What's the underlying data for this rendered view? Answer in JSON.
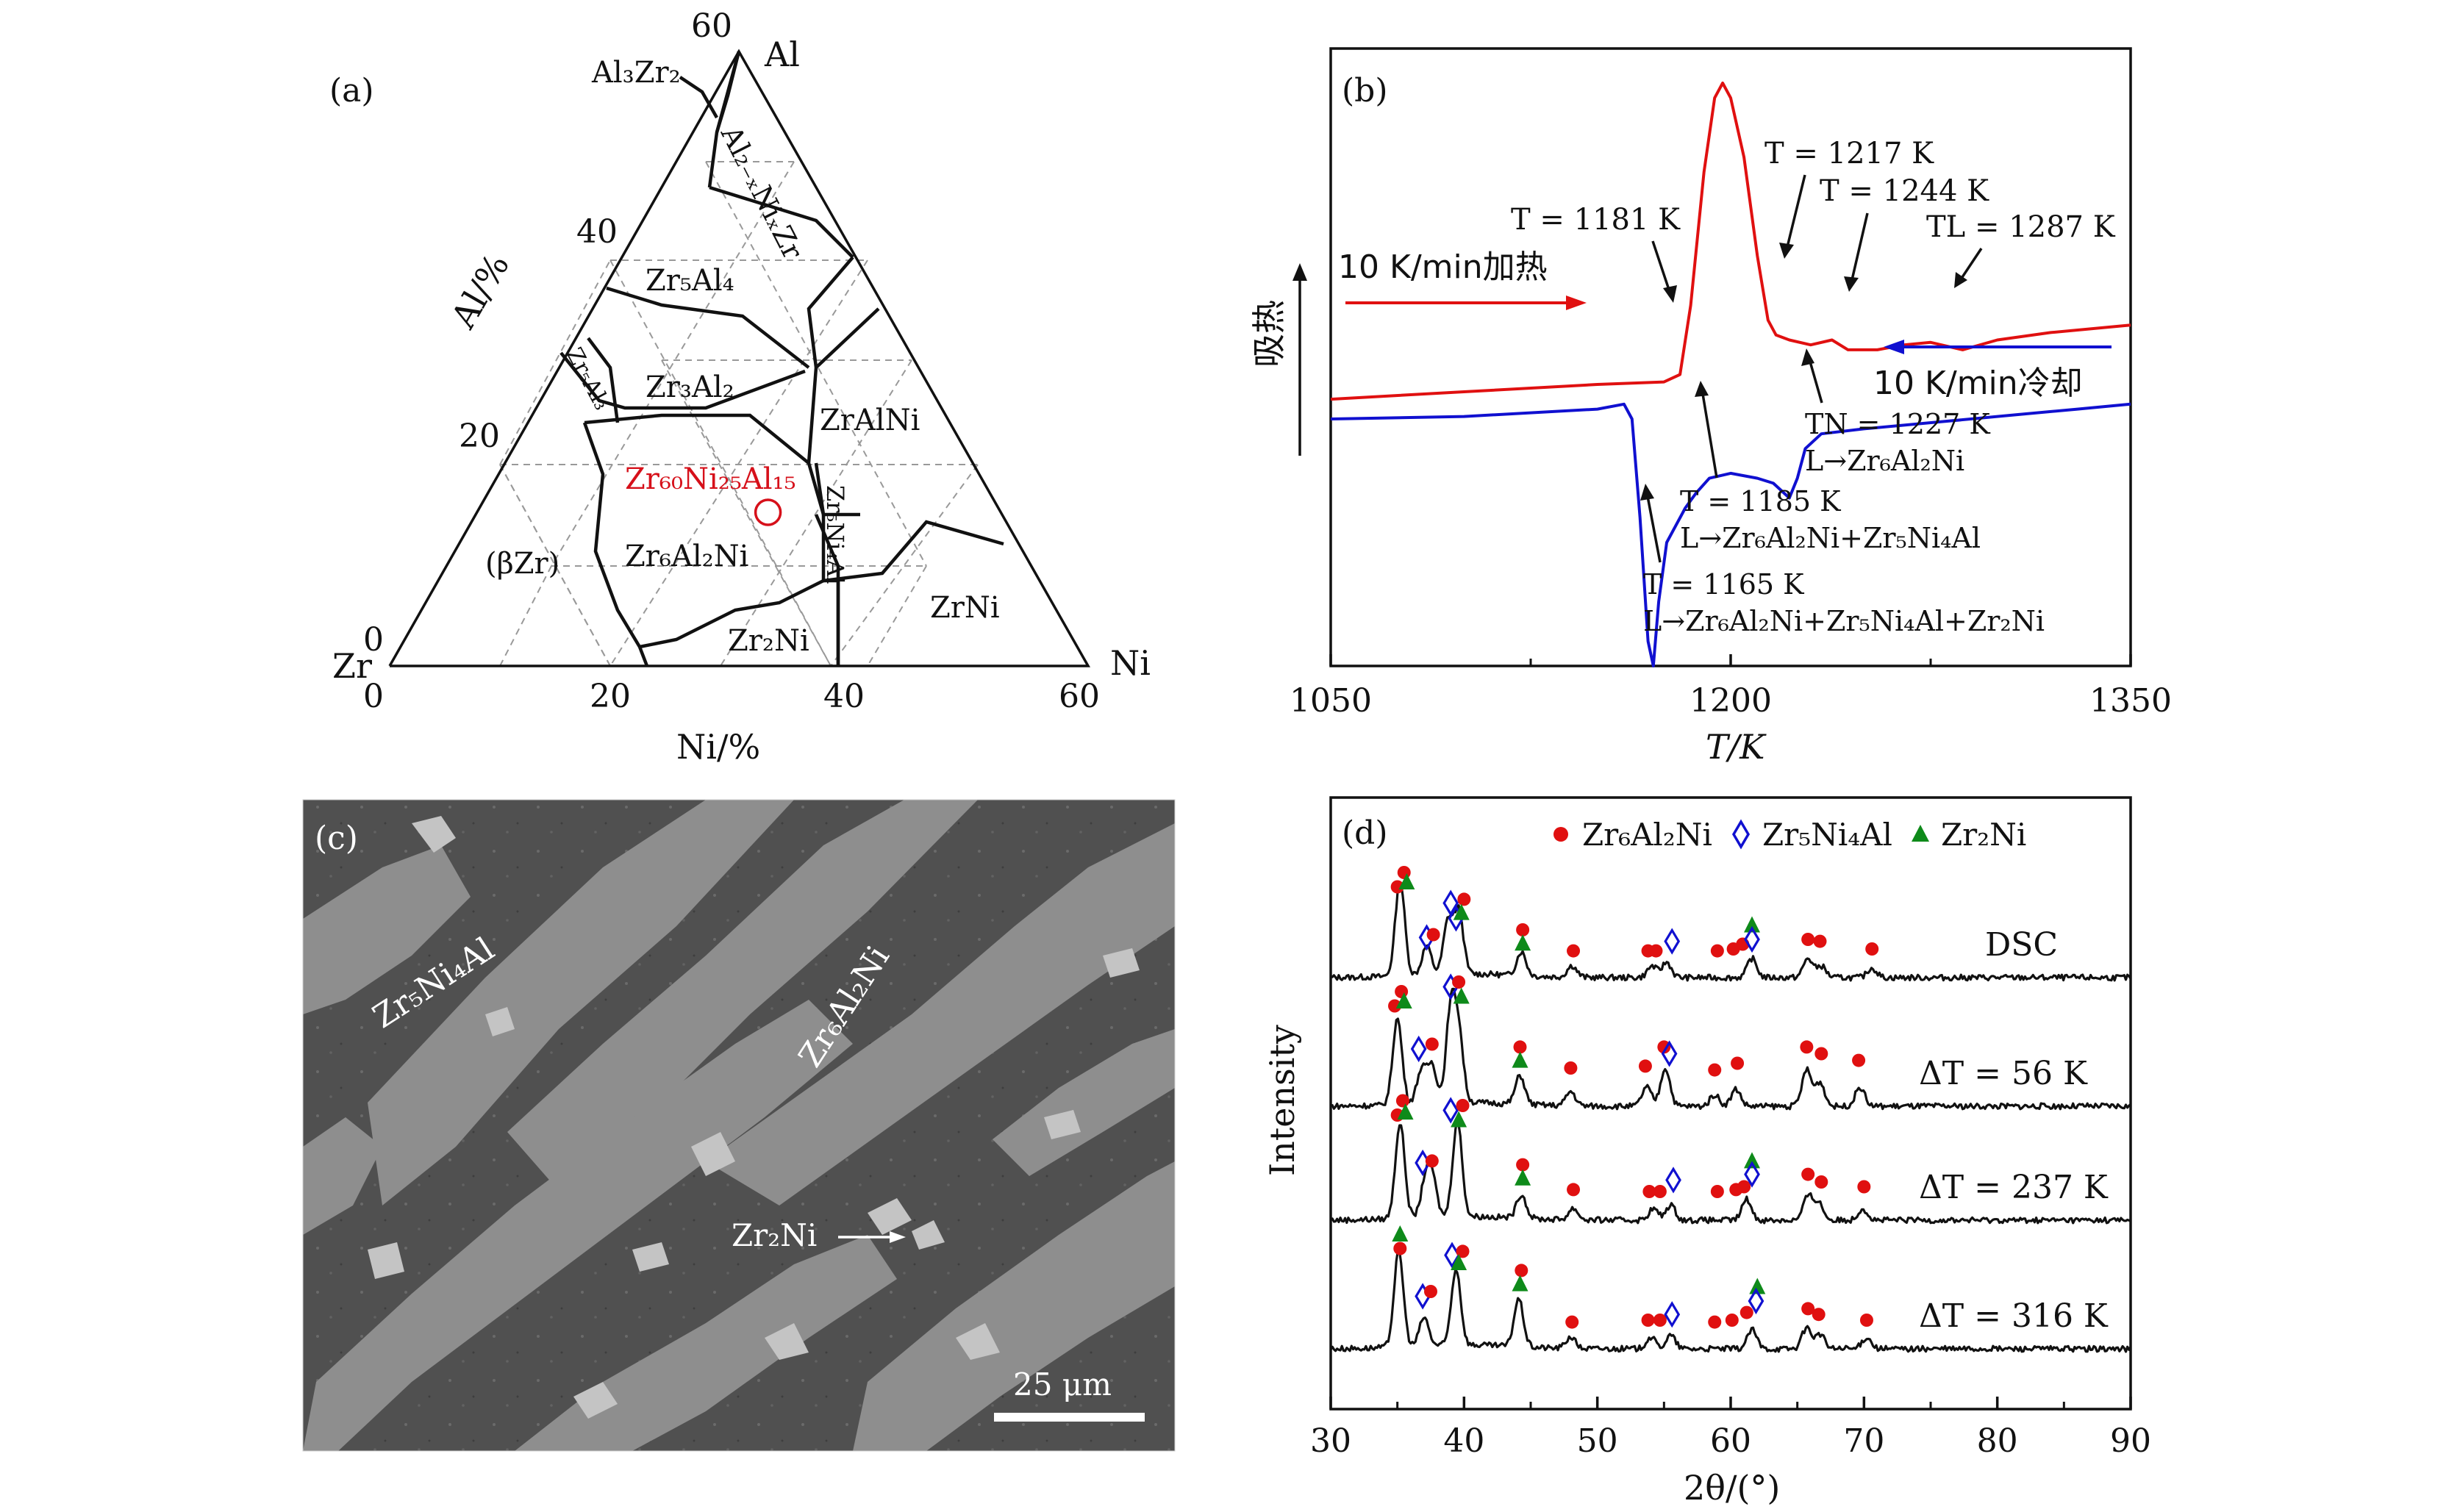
{
  "panels": {
    "a": "(a)",
    "b": "(b)",
    "c": "(c)",
    "d": "(d)"
  },
  "panel_a": {
    "vertices": {
      "zr": "Zr",
      "al": "Al",
      "ni": "Ni"
    },
    "al_ticks": [
      "60",
      "40",
      "20",
      "0"
    ],
    "ni_ticks": [
      "0",
      "20",
      "40",
      "60"
    ],
    "al_axis_label": "Al/%",
    "ni_axis_label": "Ni/%",
    "phases": {
      "al3zr2": "Al₃Zr₂",
      "al2xni": "Al₂₋ₓNiₓZr",
      "zr5al4": "Zr₅Al₄",
      "zr5al3": "Zr₅Al₃",
      "zr3al2": "Zr₃Al₂",
      "zralni": "ZrAlNi",
      "betazr": "(βZr)",
      "zr6al2ni": "Zr₆Al₂Ni",
      "zr5ni4al": "Zr₅Ni₄Al",
      "zrni": "ZrNi",
      "zr2ni": "Zr₂Ni"
    },
    "composition_label": "Zr₆₀Ni₂₅Al₁₅",
    "composition_point": {
      "ni": 25,
      "al": 15
    }
  },
  "chart_data": [
    {
      "panel": "b",
      "type": "line",
      "title": "",
      "xlabel": "T/K",
      "ylabel": "吸热",
      "xlim": [
        1050,
        1350
      ],
      "xticks": [
        "1050",
        "1200",
        "1350"
      ],
      "series": [
        {
          "name": "10 K/min加热",
          "color": "#e01010",
          "points": [
            [
              1050,
              0.71
            ],
            [
              1100,
              0.695
            ],
            [
              1150,
              0.68
            ],
            [
              1175,
              0.675
            ],
            [
              1181,
              0.66
            ],
            [
              1185,
              0.52
            ],
            [
              1190,
              0.25
            ],
            [
              1194,
              0.1
            ],
            [
              1197,
              0.07
            ],
            [
              1200,
              0.1
            ],
            [
              1205,
              0.22
            ],
            [
              1210,
              0.42
            ],
            [
              1214,
              0.55
            ],
            [
              1217,
              0.58
            ],
            [
              1222,
              0.59
            ],
            [
              1230,
              0.6
            ],
            [
              1238,
              0.59
            ],
            [
              1244,
              0.61
            ],
            [
              1255,
              0.61
            ],
            [
              1265,
              0.6
            ],
            [
              1275,
              0.595
            ],
            [
              1287,
              0.61
            ],
            [
              1300,
              0.59
            ],
            [
              1320,
              0.575
            ],
            [
              1350,
              0.56
            ]
          ]
        },
        {
          "name": "10 K/min冷却",
          "color": "#1010d0",
          "points": [
            [
              1050,
              0.75
            ],
            [
              1100,
              0.745
            ],
            [
              1150,
              0.73
            ],
            [
              1160,
              0.72
            ],
            [
              1163,
              0.75
            ],
            [
              1166,
              0.95
            ],
            [
              1169,
              1.2
            ],
            [
              1171,
              1.25
            ],
            [
              1173,
              1.12
            ],
            [
              1176,
              1.0
            ],
            [
              1180,
              0.96
            ],
            [
              1183,
              0.93
            ],
            [
              1187,
              0.9
            ],
            [
              1192,
              0.87
            ],
            [
              1200,
              0.86
            ],
            [
              1210,
              0.87
            ],
            [
              1216,
              0.88
            ],
            [
              1222,
              0.91
            ],
            [
              1225,
              0.87
            ],
            [
              1228,
              0.81
            ],
            [
              1234,
              0.78
            ],
            [
              1250,
              0.77
            ],
            [
              1280,
              0.755
            ],
            [
              1310,
              0.74
            ],
            [
              1330,
              0.73
            ],
            [
              1350,
              0.72
            ]
          ]
        }
      ],
      "annotations": {
        "heat_label": "10 K/min加热",
        "cool_label": "10 K/min冷却",
        "h1": "T = 1181 K",
        "h2": "T = 1217 K",
        "h3": "T = 1244 K",
        "h4": "TL = 1287 K",
        "c1a": "TN = 1227 K",
        "c1b": "L→Zr₆Al₂Ni",
        "c2a": "T = 1185 K",
        "c2b": "L→Zr₆Al₂Ni+Zr₅Ni₄Al",
        "c3a": "T = 1165 K",
        "c3b": "L→Zr₆Al₂Ni+Zr₅Ni₄Al+Zr₂Ni"
      }
    },
    {
      "panel": "d",
      "type": "line",
      "title": "",
      "xlabel": "2θ/(°)",
      "ylabel": "Intensity",
      "xlim": [
        30,
        90
      ],
      "xticks": [
        "30",
        "40",
        "50",
        "60",
        "70",
        "80",
        "90"
      ],
      "legend": [
        "Zr₆Al₂Ni",
        "Zr₅Ni₄Al",
        "Zr₂Ni"
      ],
      "legend_position": "top",
      "series": [
        {
          "name": "DSC",
          "peaks": [
            [
              35.2,
              1.0
            ],
            [
              37.2,
              0.3
            ],
            [
              38.8,
              0.55
            ],
            [
              39.6,
              0.65
            ],
            [
              44.3,
              0.25
            ],
            [
              48.1,
              0.12
            ],
            [
              54.1,
              0.12
            ],
            [
              55.2,
              0.16
            ],
            [
              61.6,
              0.2
            ],
            [
              65.8,
              0.2
            ],
            [
              66.8,
              0.12
            ],
            [
              70.6,
              0.1
            ]
          ]
        },
        {
          "name": "ΔT = 56 K",
          "peaks": [
            [
              35.0,
              0.9
            ],
            [
              36.8,
              0.35
            ],
            [
              37.6,
              0.4
            ],
            [
              39.0,
              0.95
            ],
            [
              39.6,
              0.7
            ],
            [
              44.2,
              0.3
            ],
            [
              48.0,
              0.15
            ],
            [
              53.7,
              0.2
            ],
            [
              55.1,
              0.4
            ],
            [
              58.8,
              0.12
            ],
            [
              60.4,
              0.18
            ],
            [
              65.7,
              0.38
            ],
            [
              66.7,
              0.25
            ],
            [
              69.7,
              0.2
            ]
          ]
        },
        {
          "name": "ΔT = 237 K",
          "peaks": [
            [
              35.2,
              1.0
            ],
            [
              37.1,
              0.35
            ],
            [
              37.6,
              0.4
            ],
            [
              39.5,
              1.0
            ],
            [
              44.3,
              0.25
            ],
            [
              48.2,
              0.12
            ],
            [
              54.2,
              0.12
            ],
            [
              55.5,
              0.16
            ],
            [
              61.2,
              0.22
            ],
            [
              65.8,
              0.25
            ],
            [
              66.6,
              0.18
            ],
            [
              69.9,
              0.12
            ]
          ]
        },
        {
          "name": "ΔT = 316 K",
          "peaks": [
            [
              35.1,
              1.0
            ],
            [
              37.0,
              0.3
            ],
            [
              39.4,
              0.8
            ],
            [
              44.1,
              0.5
            ],
            [
              48.0,
              0.12
            ],
            [
              54.0,
              0.12
            ],
            [
              55.5,
              0.14
            ],
            [
              61.6,
              0.2
            ],
            [
              65.7,
              0.22
            ],
            [
              66.7,
              0.15
            ],
            [
              70.2,
              0.12
            ]
          ]
        }
      ],
      "markers": [
        {
          "s": 0,
          "items": [
            [
              "c",
              35.0,
              0.95
            ],
            [
              "c",
              35.5,
              1.1
            ],
            [
              "t",
              35.7,
              1.0
            ],
            [
              "d",
              37.2,
              0.42
            ],
            [
              "c",
              37.7,
              0.45
            ],
            [
              "d",
              39.0,
              0.78
            ],
            [
              "d",
              39.4,
              0.62
            ],
            [
              "c",
              40.0,
              0.82
            ],
            [
              "t",
              39.8,
              0.68
            ],
            [
              "c",
              44.4,
              0.5
            ],
            [
              "t",
              44.4,
              0.36
            ],
            [
              "c",
              48.2,
              0.28
            ],
            [
              "c",
              53.8,
              0.28
            ],
            [
              "c",
              54.4,
              0.28
            ],
            [
              "d",
              55.6,
              0.38
            ],
            [
              "c",
              59.0,
              0.28
            ],
            [
              "c",
              60.2,
              0.3
            ],
            [
              "c",
              60.9,
              0.35
            ],
            [
              "t",
              61.6,
              0.55
            ],
            [
              "d",
              61.6,
              0.4
            ],
            [
              "c",
              65.8,
              0.4
            ],
            [
              "c",
              66.7,
              0.38
            ],
            [
              "c",
              70.6,
              0.3
            ]
          ]
        },
        {
          "s": 1,
          "items": [
            [
              "c",
              34.8,
              1.05
            ],
            [
              "c",
              35.3,
              1.2
            ],
            [
              "t",
              35.5,
              1.1
            ],
            [
              "d",
              36.6,
              0.6
            ],
            [
              "c",
              37.6,
              0.65
            ],
            [
              "d",
              39.0,
              1.25
            ],
            [
              "c",
              39.6,
              1.3
            ],
            [
              "t",
              39.8,
              1.15
            ],
            [
              "c",
              44.2,
              0.62
            ],
            [
              "t",
              44.2,
              0.48
            ],
            [
              "c",
              48.0,
              0.4
            ],
            [
              "c",
              53.6,
              0.42
            ],
            [
              "c",
              55.0,
              0.62
            ],
            [
              "d",
              55.4,
              0.55
            ],
            [
              "c",
              58.8,
              0.38
            ],
            [
              "c",
              60.5,
              0.45
            ],
            [
              "c",
              65.7,
              0.62
            ],
            [
              "c",
              66.8,
              0.55
            ],
            [
              "c",
              69.6,
              0.48
            ]
          ]
        },
        {
          "s": 2,
          "items": [
            [
              "c",
              35.0,
              1.1
            ],
            [
              "c",
              35.4,
              1.25
            ],
            [
              "t",
              35.6,
              1.13
            ],
            [
              "d",
              36.9,
              0.6
            ],
            [
              "c",
              37.6,
              0.62
            ],
            [
              "d",
              39.0,
              1.15
            ],
            [
              "c",
              39.9,
              1.2
            ],
            [
              "t",
              39.6,
              1.05
            ],
            [
              "c",
              44.4,
              0.58
            ],
            [
              "t",
              44.4,
              0.44
            ],
            [
              "c",
              48.2,
              0.32
            ],
            [
              "c",
              53.9,
              0.3
            ],
            [
              "c",
              54.7,
              0.3
            ],
            [
              "d",
              55.7,
              0.42
            ],
            [
              "c",
              59.0,
              0.3
            ],
            [
              "c",
              60.4,
              0.32
            ],
            [
              "c",
              61.0,
              0.35
            ],
            [
              "t",
              61.6,
              0.62
            ],
            [
              "d",
              61.6,
              0.48
            ],
            [
              "c",
              65.8,
              0.48
            ],
            [
              "c",
              66.8,
              0.4
            ],
            [
              "c",
              70.0,
              0.35
            ]
          ]
        },
        {
          "s": 3,
          "items": [
            [
              "t",
              35.2,
              1.2
            ],
            [
              "c",
              35.2,
              1.05
            ],
            [
              "d",
              36.9,
              0.55
            ],
            [
              "c",
              37.5,
              0.6
            ],
            [
              "d",
              39.1,
              0.98
            ],
            [
              "c",
              39.9,
              1.02
            ],
            [
              "t",
              39.6,
              0.9
            ],
            [
              "c",
              44.3,
              0.82
            ],
            [
              "t",
              44.2,
              0.68
            ],
            [
              "c",
              48.1,
              0.28
            ],
            [
              "c",
              53.8,
              0.3
            ],
            [
              "c",
              54.7,
              0.3
            ],
            [
              "d",
              55.6,
              0.36
            ],
            [
              "c",
              58.8,
              0.28
            ],
            [
              "c",
              60.1,
              0.3
            ],
            [
              "c",
              61.2,
              0.38
            ],
            [
              "t",
              62.0,
              0.65
            ],
            [
              "d",
              61.9,
              0.5
            ],
            [
              "c",
              65.8,
              0.42
            ],
            [
              "c",
              66.6,
              0.36
            ],
            [
              "c",
              70.2,
              0.3
            ]
          ]
        }
      ]
    }
  ],
  "panel_c": {
    "labels": {
      "zr5ni4al": "Zr₅Ni₄Al",
      "zr6al2ni": "Zr₆Al₂Ni",
      "zr2ni": "Zr₂Ni"
    },
    "scale_bar": "25 μm"
  },
  "colors": {
    "heat": "#e01010",
    "cool": "#1010d0",
    "phase1": "#e01010",
    "phase2": "#1010d0",
    "phase3": "#0e8a1a",
    "composition": "#d6101a"
  }
}
